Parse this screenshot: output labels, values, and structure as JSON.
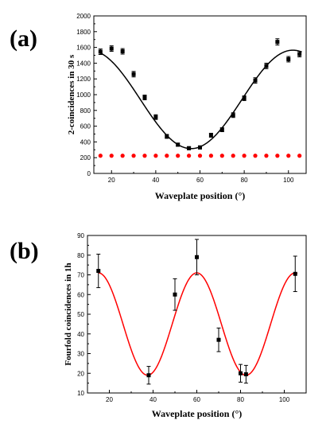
{
  "panels": [
    {
      "label": "(a)",
      "xlabel": "Waveplate position (°)",
      "ylabel": "2-coincidences in 30 s"
    },
    {
      "label": "(b)",
      "xlabel": "Waveplate position (°)",
      "ylabel": "Fourfold coincidences in 1h"
    }
  ],
  "chart_data": [
    {
      "type": "scatter",
      "panel": "(a)",
      "xlabel": "Waveplate position (°)",
      "ylabel": "2-coincidences in 30 s",
      "xlim": [
        12,
        108
      ],
      "ylim": [
        0,
        2000
      ],
      "xticks": [
        20,
        40,
        60,
        80,
        100
      ],
      "yticks": [
        0,
        200,
        400,
        600,
        800,
        1000,
        1200,
        1400,
        1600,
        1800,
        2000
      ],
      "grid": false,
      "colors": {
        "points": "#000000",
        "fit": "#000000",
        "baseline": "#ff0000"
      },
      "series": [
        {
          "kind": "points_with_error",
          "x": [
            15,
            20,
            25,
            30,
            35,
            40,
            45,
            50,
            55,
            60,
            65,
            70,
            75,
            80,
            85,
            90,
            95,
            100,
            105
          ],
          "y": [
            1545,
            1585,
            1550,
            1260,
            965,
            715,
            470,
            365,
            320,
            330,
            485,
            555,
            740,
            955,
            1180,
            1365,
            1670,
            1450,
            1515
          ],
          "err": [
            35,
            35,
            35,
            35,
            30,
            30,
            25,
            20,
            20,
            20,
            25,
            25,
            30,
            30,
            35,
            35,
            40,
            35,
            35
          ]
        },
        {
          "kind": "fit_curve",
          "model": "offset + amplitude*cos(2*pi*(x - x_peak)/period)",
          "params": {
            "offset": 940,
            "amplitude": 625,
            "x_peak": 102,
            "period": 92
          }
        },
        {
          "kind": "points",
          "x": [
            15,
            20,
            25,
            30,
            35,
            40,
            45,
            50,
            55,
            60,
            65,
            70,
            75,
            80,
            85,
            90,
            95,
            100,
            105
          ],
          "y": [
            225,
            225,
            225,
            225,
            225,
            225,
            225,
            225,
            225,
            225,
            225,
            225,
            225,
            225,
            225,
            225,
            225,
            225,
            225
          ]
        }
      ]
    },
    {
      "type": "scatter",
      "panel": "(b)",
      "xlabel": "Waveplate position (°)",
      "ylabel": "Fourfold coincidences in 1h",
      "xlim": [
        10,
        110
      ],
      "ylim": [
        10,
        90
      ],
      "xticks": [
        20,
        40,
        60,
        80,
        100
      ],
      "yticks": [
        10,
        20,
        30,
        40,
        50,
        60,
        70,
        80,
        90
      ],
      "grid": false,
      "colors": {
        "points": "#000000",
        "fit": "#ff0000"
      },
      "series": [
        {
          "kind": "points_with_error",
          "x": [
            15,
            38,
            50,
            60,
            70,
            80,
            82.5,
            105
          ],
          "y": [
            72,
            19,
            60,
            79,
            37,
            20,
            19.5,
            70.5
          ],
          "err": [
            8.5,
            4.5,
            8,
            9,
            6,
            4.5,
            4.5,
            9
          ]
        },
        {
          "kind": "fit_curve",
          "model": "offset + amplitude*cos(2*pi*(x - x_peak)/period)",
          "params": {
            "offset": 45,
            "amplitude": 26,
            "x_peak": 60,
            "period": 45
          }
        }
      ]
    }
  ]
}
